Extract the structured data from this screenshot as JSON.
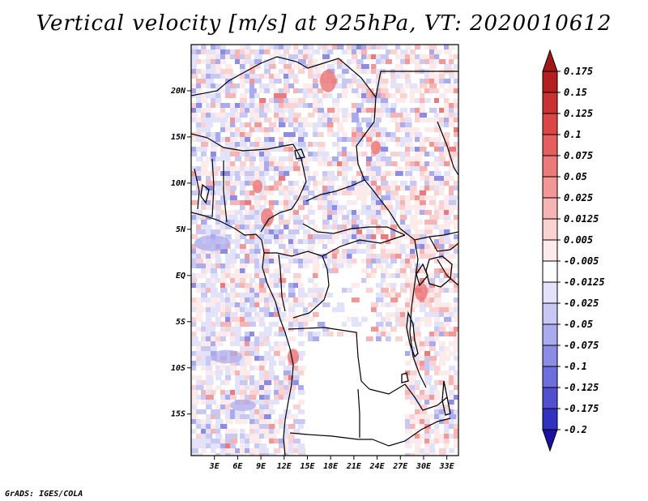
{
  "title": "Vertical velocity [m/s] at 925hPa, VT: 2020010612",
  "credit": "GrADS: IGES/COLA",
  "map": {
    "lon_range": [
      0,
      34.5
    ],
    "lat_range": [
      -19.5,
      25
    ],
    "lat_ticks": [
      {
        "value": 20,
        "label": "20N"
      },
      {
        "value": 15,
        "label": "15N"
      },
      {
        "value": 10,
        "label": "10N"
      },
      {
        "value": 5,
        "label": "5N"
      },
      {
        "value": 0,
        "label": "EQ"
      },
      {
        "value": -5,
        "label": "5S"
      },
      {
        "value": -10,
        "label": "10S"
      },
      {
        "value": -15,
        "label": "15S"
      }
    ],
    "lon_ticks": [
      {
        "value": 3,
        "label": "3E"
      },
      {
        "value": 6,
        "label": "6E"
      },
      {
        "value": 9,
        "label": "9E"
      },
      {
        "value": 12,
        "label": "12E"
      },
      {
        "value": 15,
        "label": "15E"
      },
      {
        "value": 18,
        "label": "18E"
      },
      {
        "value": 21,
        "label": "21E"
      },
      {
        "value": 24,
        "label": "24E"
      },
      {
        "value": 27,
        "label": "27E"
      },
      {
        "value": 30,
        "label": "30E"
      },
      {
        "value": 33,
        "label": "33E"
      }
    ]
  },
  "colorbar": {
    "top_color": "#a01818",
    "bottom_color": "#1c10a0",
    "levels": [
      {
        "label": "0.175",
        "color": "#b41e1e"
      },
      {
        "label": "0.15",
        "color": "#c83232"
      },
      {
        "label": "0.125",
        "color": "#dc4646"
      },
      {
        "label": "0.1",
        "color": "#e65f5f"
      },
      {
        "label": "0.075",
        "color": "#ec7a7a"
      },
      {
        "label": "0.05",
        "color": "#f29696"
      },
      {
        "label": "0.025",
        "color": "#f7b4b4"
      },
      {
        "label": "0.0125",
        "color": "#fad2d2"
      },
      {
        "label": "0.005",
        "color": "#fdeaea"
      },
      {
        "label": "-0.005",
        "color": "#ffffff"
      },
      {
        "label": "-0.0125",
        "color": "#e2e2fa"
      },
      {
        "label": "-0.025",
        "color": "#c8c8f5"
      },
      {
        "label": "-0.05",
        "color": "#aaaaee"
      },
      {
        "label": "-0.075",
        "color": "#8c8ce6"
      },
      {
        "label": "-0.1",
        "color": "#6e6edc"
      },
      {
        "label": "-0.125",
        "color": "#5050d0"
      },
      {
        "label": "-0.175",
        "color": "#3232c0"
      },
      {
        "label": "-0.2",
        "color": "#2020b0"
      }
    ]
  }
}
